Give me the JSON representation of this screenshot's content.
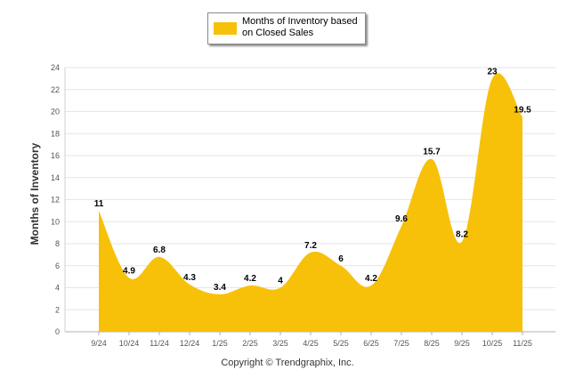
{
  "chart_data": {
    "type": "area",
    "title": "",
    "xlabel": "",
    "ylabel": "Months of Inventory",
    "ylim": [
      0,
      24
    ],
    "ytick_step": 2,
    "grid": true,
    "legend_position": "top-center",
    "categories": [
      "9/24",
      "10/24",
      "11/24",
      "12/24",
      "1/25",
      "2/25",
      "3/25",
      "4/25",
      "5/25",
      "6/25",
      "7/25",
      "8/25",
      "9/25",
      "10/25",
      "11/25"
    ],
    "series": [
      {
        "name": "Months of Inventory based on Closed Sales",
        "color": "#f7c10a",
        "values": [
          11,
          4.9,
          6.8,
          4.3,
          3.4,
          4.2,
          4,
          7.2,
          6,
          4.2,
          9.6,
          15.7,
          8.2,
          23,
          19.5
        ],
        "labels": [
          "11",
          "4.9",
          "6.8",
          "4.3",
          "3.4",
          "4.2",
          "4",
          "7.2",
          "6",
          "4.2",
          "9.6",
          "15.7",
          "8.2",
          "23",
          "19.5"
        ]
      }
    ]
  },
  "legend": {
    "label": "Months of Inventory based on Closed Sales"
  },
  "footer": {
    "copyright": "Copyright © Trendgraphix, Inc."
  }
}
